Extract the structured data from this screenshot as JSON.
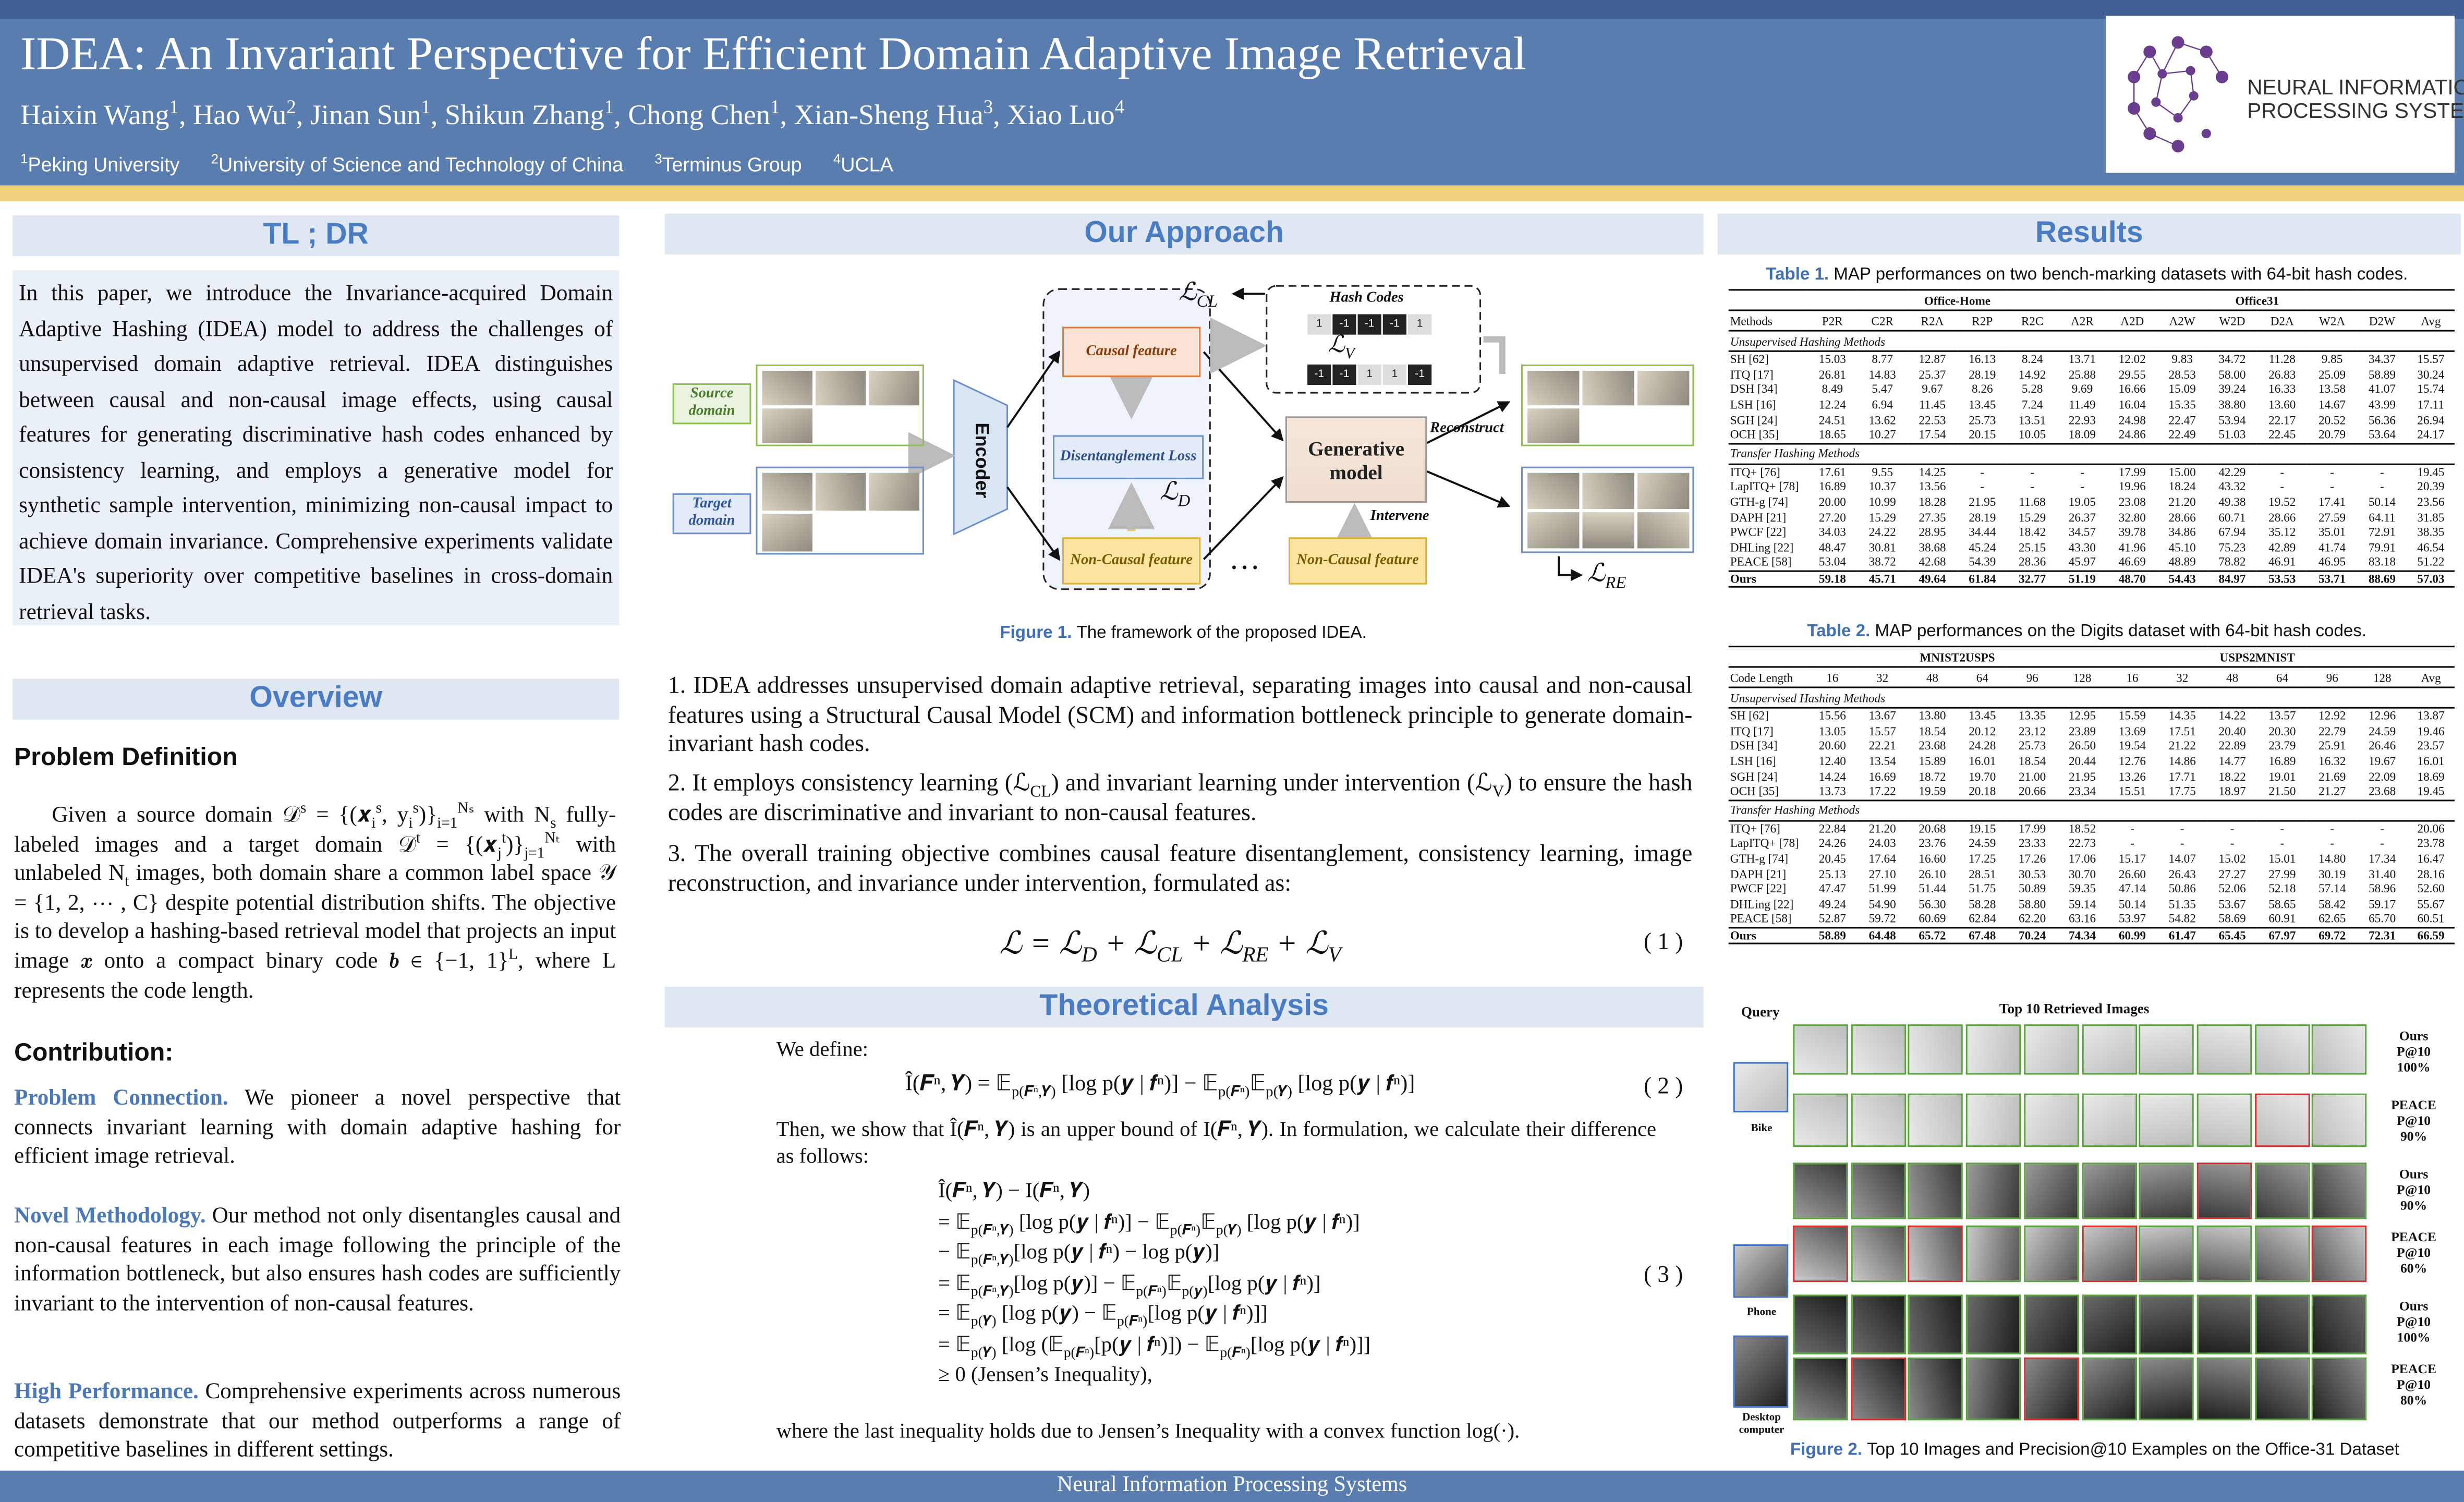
{
  "header": {
    "title": "IDEA: An Invariant Perspective for Efficient Domain Adaptive Image Retrieval",
    "authors": [
      "Haixin Wang",
      {
        "sup": "1"
      },
      ", Hao Wu",
      {
        "sup": "2"
      },
      ", Jinan Sun",
      {
        "sup": "1"
      },
      ", Shikun Zhang",
      {
        "sup": "1"
      },
      ", Chong Chen",
      {
        "sup": "1"
      },
      ", Xian-Sheng Hua",
      {
        "sup": "3"
      },
      ", Xiao Luo",
      {
        "sup": "4"
      }
    ],
    "affiliations": [
      {
        "sup": "1"
      },
      "Peking University",
      {
        "sup": "2"
      },
      "University of Science and Technology of China",
      {
        "sup": "3"
      },
      "Terminus Group",
      {
        "sup": "4"
      },
      "UCLA"
    ],
    "logo": [
      "NEURAL INFORMATION",
      "PROCESSING SYSTEMS"
    ]
  },
  "left": {
    "tldr_title": "TL ; DR",
    "tldr": "In this paper, we introduce the Invariance-acquired Domain Adaptive Hashing (IDEA) model to address the challenges of unsupervised domain adaptive retrieval. IDEA distinguishes between causal and non-causal image effects, using causal features for generating discriminative hash codes enhanced by consistency learning, and employs a generative model for synthetic sample intervention, minimizing non-causal impact to achieve domain invariance. Comprehensive experiments validate IDEA's superiority over competitive baselines in cross-domain retrieval tasks.",
    "overview_title": "Overview",
    "problem_title": "Problem Definition",
    "problem": [
      "Given a source domain 𝒟",
      {
        "sup": "s"
      },
      " = {(𝒙",
      {
        "sub": "i"
      },
      {
        "sup": "s"
      },
      ", y",
      {
        "sub": "i"
      },
      {
        "sup": "s"
      },
      ")}",
      {
        "sub": "i=1"
      },
      {
        "sup": "Nₛ"
      },
      " with N",
      {
        "sub": "s"
      },
      " fully-labeled images and a target domain 𝒟",
      {
        "sup": "t"
      },
      " = {(𝒙",
      {
        "sub": "j"
      },
      {
        "sup": "t"
      },
      ")}",
      {
        "sub": "j=1"
      },
      {
        "sup": "Nₜ"
      },
      " with unlabeled N",
      {
        "sub": "t"
      },
      " images, both domain share a common label space 𝒴 = {1, 2, ⋯ , C} despite potential distribution shifts. The objective is to develop a hashing-based retrieval model that projects an input image 𝒙 onto a compact binary code 𝒃 ∈ {−1, 1}",
      {
        "sup": "L"
      },
      ", where L represents the code length."
    ],
    "contribution_title": "Contribution:",
    "contributions": [
      [
        {
          "lead": "Problem Connection."
        },
        " We pioneer a novel perspective that connects invariant learning with domain adaptive hashing for efficient image retrieval."
      ],
      [
        {
          "lead": "Novel Methodology."
        },
        " Our method not only disentangles causal and non-causal features in each image following the principle of the information bottleneck, but also ensures hash codes are sufficiently invariant to the intervention of non-causal features."
      ],
      [
        {
          "lead": "High Performance."
        },
        " Comprehensive experiments across numerous datasets demonstrate that our method outperforms a range of competitive baselines in different settings."
      ]
    ]
  },
  "approach": {
    "title": "Our Approach",
    "figure1": {
      "loss_cl": [
        "ℒ",
        {
          "sub": "CL"
        }
      ],
      "hash_codes": "Hash Codes",
      "codes": [
        [
          "1",
          "-1",
          "-1",
          "-1",
          "1"
        ],
        [
          "-1",
          "-1",
          "1",
          "1",
          "-1"
        ]
      ],
      "loss_v": [
        "ℒ",
        {
          "sub": "V"
        }
      ],
      "source": "Source domain",
      "target": "Target domain",
      "encoder": "Encoder",
      "causal": "Causal feature",
      "disentangle": "Disentanglement Loss",
      "loss_d": [
        "ℒ",
        {
          "sub": "D"
        }
      ],
      "noncausal": "Non-Causal feature",
      "dots": "…",
      "generative": "Generative model",
      "reconstruct": "Reconstruct",
      "intervene": "Intervene",
      "noncausal2": "Non-Causal feature",
      "loss_re": [
        "ℒ",
        {
          "sub": "RE"
        }
      ],
      "caption_label": "Figure 1.",
      "caption": "The framework of the proposed IDEA."
    },
    "points": [
      [
        "1. IDEA addresses unsupervised domain adaptive retrieval, separating images into causal and non-causal features using a Structural Causal Model (SCM) and information bottleneck principle to generate domain-invariant hash codes."
      ],
      [
        "2. It employs consistency learning (ℒ",
        {
          "sub": "CL"
        },
        ") and invariant learning under intervention (ℒ",
        {
          "sub": "V"
        },
        ") to ensure the hash codes are discriminative and invariant to non-causal features."
      ],
      [
        "3.  The overall training objective combines causal feature disentanglement, consistency learning, image reconstruction, and invariance under intervention, formulated as:"
      ]
    ],
    "eq1": [
      "ℒ = ℒ",
      {
        "sub": "D"
      },
      " + ℒ",
      {
        "sub": "CL"
      },
      " + ℒ",
      {
        "sub": "RE"
      },
      " + ℒ",
      {
        "sub": "V"
      }
    ],
    "eq1_number": "( 1 )"
  },
  "theory": {
    "title": "Theoretical Analysis",
    "define": "We define:",
    "eq2": [
      "Î(𝑭ⁿ, 𝒀) = 𝔼",
      {
        "sub": "p(𝑭ⁿ,𝒀)"
      },
      " [log p(𝒚 | 𝒇ⁿ)] − 𝔼",
      {
        "sub": "p(𝑭ⁿ)"
      },
      "𝔼",
      {
        "sub": "p(𝒀)"
      },
      " [log p(𝒚 | 𝒇ⁿ)]"
    ],
    "eq2_number": "( 2 )",
    "then": "Then, we show that Î(𝑭ⁿ, 𝒀) is an upper bound of I(𝑭ⁿ, 𝒀). In formulation, we calculate their difference as follows:",
    "eq3": [
      [
        "Î(𝑭ⁿ, 𝒀) − I(𝑭ⁿ, 𝒀)"
      ],
      [
        "= 𝔼",
        {
          "sub": "p(𝑭ⁿ,𝒀)"
        },
        " [log p(𝒚 | 𝒇ⁿ)] − 𝔼",
        {
          "sub": "p(𝑭ⁿ)"
        },
        "𝔼",
        {
          "sub": "p(𝒀)"
        },
        " [log p(𝒚 | 𝒇ⁿ)]"
      ],
      [
        "− 𝔼",
        {
          "sub": "p(𝑭ⁿ,𝒀)"
        },
        "[log p(𝒚 | 𝒇ⁿ) − log p(𝒚)]"
      ],
      [
        "= 𝔼",
        {
          "sub": "p(𝑭ⁿ,𝒀)"
        },
        "[log p(𝒚)] − 𝔼",
        {
          "sub": "p(𝑭ⁿ)"
        },
        "𝔼",
        {
          "sub": "p(𝒚)"
        },
        "[log p(𝒚 | 𝒇ⁿ)]"
      ],
      [
        "= 𝔼",
        {
          "sub": "p(𝒀)"
        },
        " [log p(𝒚) − 𝔼",
        {
          "sub": "p(𝑭ⁿ)"
        },
        "[log p(𝒚 | 𝒇ⁿ)]]"
      ],
      [
        "= 𝔼",
        {
          "sub": "p(𝒀)"
        },
        " [log (𝔼",
        {
          "sub": "p(𝑭ⁿ)"
        },
        "[p(𝒚 | 𝒇ⁿ)]) − 𝔼",
        {
          "sub": "p(𝑭ⁿ)"
        },
        "[log p(𝒚 | 𝒇ⁿ)]]"
      ],
      [
        "≥ 0 (Jensen’s Inequality),"
      ]
    ],
    "eq3_number": "( 3 )",
    "conclusion": "where the last inequality holds due to Jensen’s Inequality with a convex function log(·)."
  },
  "results": {
    "title": "Results",
    "table1": {
      "label": "Table 1.",
      "caption": "MAP performances on two bench-marking datasets with 64-bit hash codes.",
      "groups": [
        "Office-Home",
        "Office31"
      ],
      "columns": [
        "Methods",
        "P2R",
        "C2R",
        "R2A",
        "R2P",
        "R2C",
        "A2R",
        "A2D",
        "A2W",
        "W2D",
        "D2A",
        "W2A",
        "D2W",
        "Avg"
      ],
      "sections": [
        {
          "title": "Unsupervised Hashing Methods",
          "rows": [
            [
              "SH [62]",
              "15.03",
              "8.77",
              "12.87",
              "16.13",
              "8.24",
              "13.71",
              "12.02",
              "9.83",
              "34.72",
              "11.28",
              "9.85",
              "34.37",
              "15.57"
            ],
            [
              "ITQ [17]",
              "26.81",
              "14.83",
              "25.37",
              "28.19",
              "14.92",
              "25.88",
              "29.55",
              "28.53",
              "58.00",
              "26.83",
              "25.09",
              "58.89",
              "30.24"
            ],
            [
              "DSH [34]",
              "8.49",
              "5.47",
              "9.67",
              "8.26",
              "5.28",
              "9.69",
              "16.66",
              "15.09",
              "39.24",
              "16.33",
              "13.58",
              "41.07",
              "15.74"
            ],
            [
              "LSH [16]",
              "12.24",
              "6.94",
              "11.45",
              "13.45",
              "7.24",
              "11.49",
              "16.04",
              "15.35",
              "38.80",
              "13.60",
              "14.67",
              "43.99",
              "17.11"
            ],
            [
              "SGH [24]",
              "24.51",
              "13.62",
              "22.53",
              "25.73",
              "13.51",
              "22.93",
              "24.98",
              "22.47",
              "53.94",
              "22.17",
              "20.52",
              "56.36",
              "26.94"
            ],
            [
              "OCH [35]",
              "18.65",
              "10.27",
              "17.54",
              "20.15",
              "10.05",
              "18.09",
              "24.86",
              "22.49",
              "51.03",
              "22.45",
              "20.79",
              "53.64",
              "24.17"
            ]
          ]
        },
        {
          "title": "Transfer Hashing Methods",
          "rows": [
            [
              "ITQ+ [76]",
              "17.61",
              "9.55",
              "14.25",
              "-",
              "-",
              "-",
              "17.99",
              "15.00",
              "42.29",
              "-",
              "-",
              "-",
              "19.45"
            ],
            [
              "LapITQ+ [78]",
              "16.89",
              "10.37",
              "13.56",
              "-",
              "-",
              "-",
              "19.96",
              "18.24",
              "43.32",
              "-",
              "-",
              "-",
              "20.39"
            ],
            [
              "GTH-g [74]",
              "20.00",
              "10.99",
              "18.28",
              "21.95",
              "11.68",
              "19.05",
              "23.08",
              "21.20",
              "49.38",
              "19.52",
              "17.41",
              "50.14",
              "23.56"
            ],
            [
              "DAPH [21]",
              "27.20",
              "15.29",
              "27.35",
              "28.19",
              "15.29",
              "26.37",
              "32.80",
              "28.66",
              "60.71",
              "28.66",
              "27.59",
              "64.11",
              "31.85"
            ],
            [
              "PWCF [22]",
              "34.03",
              "24.22",
              "28.95",
              "34.44",
              "18.42",
              "34.57",
              "39.78",
              "34.86",
              "67.94",
              "35.12",
              "35.01",
              "72.91",
              "38.35"
            ],
            [
              "DHLing [22]",
              "48.47",
              "30.81",
              "38.68",
              "45.24",
              "25.15",
              "43.30",
              "41.96",
              "45.10",
              "75.23",
              "42.89",
              "41.74",
              "79.91",
              "46.54"
            ],
            [
              "PEACE [58]",
              "53.04",
              "38.72",
              "42.68",
              "54.39",
              "28.36",
              "45.97",
              "46.69",
              "48.89",
              "78.82",
              "46.91",
              "46.95",
              "83.18",
              "51.22"
            ],
            [
              "Ours",
              "59.18",
              "45.71",
              "49.64",
              "61.84",
              "32.77",
              "51.19",
              "48.70",
              "54.43",
              "84.97",
              "53.53",
              "53.71",
              "88.69",
              "57.03"
            ]
          ]
        }
      ]
    },
    "table2": {
      "label": "Table 2.",
      "caption": "MAP performances on the Digits dataset with 64-bit hash codes.",
      "groups": [
        "MNIST2USPS",
        "USPS2MNIST"
      ],
      "columns": [
        "Code Length",
        "16",
        "32",
        "48",
        "64",
        "96",
        "128",
        "16",
        "32",
        "48",
        "64",
        "96",
        "128",
        "Avg"
      ],
      "sections": [
        {
          "title": "Unsupervised Hashing Methods",
          "rows": [
            [
              "SH [62]",
              "15.56",
              "13.67",
              "13.80",
              "13.45",
              "13.35",
              "12.95",
              "15.59",
              "14.35",
              "14.22",
              "13.57",
              "12.92",
              "12.96",
              "13.87"
            ],
            [
              "ITQ [17]",
              "13.05",
              "15.57",
              "18.54",
              "20.12",
              "23.12",
              "23.89",
              "13.69",
              "17.51",
              "20.40",
              "20.30",
              "22.79",
              "24.59",
              "19.46"
            ],
            [
              "DSH [34]",
              "20.60",
              "22.21",
              "23.68",
              "24.28",
              "25.73",
              "26.50",
              "19.54",
              "21.22",
              "22.89",
              "23.79",
              "25.91",
              "26.46",
              "23.57"
            ],
            [
              "LSH [16]",
              "12.40",
              "13.54",
              "15.89",
              "16.01",
              "18.54",
              "20.44",
              "12.76",
              "14.86",
              "14.77",
              "16.89",
              "16.32",
              "19.67",
              "16.01"
            ],
            [
              "SGH [24]",
              "14.24",
              "16.69",
              "18.72",
              "19.70",
              "21.00",
              "21.95",
              "13.26",
              "17.71",
              "18.22",
              "19.01",
              "21.69",
              "22.09",
              "18.69"
            ],
            [
              "OCH [35]",
              "13.73",
              "17.22",
              "19.59",
              "20.18",
              "20.66",
              "23.34",
              "15.51",
              "17.75",
              "18.97",
              "21.50",
              "21.27",
              "23.68",
              "19.45"
            ]
          ]
        },
        {
          "title": "Transfer Hashing Methods",
          "rows": [
            [
              "ITQ+ [76]",
              "22.84",
              "21.20",
              "20.68",
              "19.15",
              "17.99",
              "18.52",
              "-",
              "-",
              "-",
              "-",
              "-",
              "-",
              "20.06"
            ],
            [
              "LapITQ+ [78]",
              "24.26",
              "24.03",
              "23.76",
              "24.59",
              "23.33",
              "22.73",
              "-",
              "-",
              "-",
              "-",
              "-",
              "-",
              "23.78"
            ],
            [
              "GTH-g [74]",
              "20.45",
              "17.64",
              "16.60",
              "17.25",
              "17.26",
              "17.06",
              "15.17",
              "14.07",
              "15.02",
              "15.01",
              "14.80",
              "17.34",
              "16.47"
            ],
            [
              "DAPH [21]",
              "25.13",
              "27.10",
              "26.10",
              "28.51",
              "30.53",
              "30.70",
              "26.60",
              "26.43",
              "27.27",
              "27.99",
              "30.19",
              "31.40",
              "28.16"
            ],
            [
              "PWCF [22]",
              "47.47",
              "51.99",
              "51.44",
              "51.75",
              "50.89",
              "59.35",
              "47.14",
              "50.86",
              "52.06",
              "52.18",
              "57.14",
              "58.96",
              "52.60"
            ],
            [
              "DHLing [22]",
              "49.24",
              "54.90",
              "56.30",
              "58.28",
              "58.80",
              "59.14",
              "50.14",
              "51.35",
              "53.67",
              "58.65",
              "58.42",
              "59.17",
              "55.67"
            ],
            [
              "PEACE [58]",
              "52.87",
              "59.72",
              "60.69",
              "62.84",
              "62.20",
              "63.16",
              "53.97",
              "54.82",
              "58.69",
              "60.91",
              "62.65",
              "65.70",
              "60.51"
            ],
            [
              "Ours",
              "58.89",
              "64.48",
              "65.72",
              "67.48",
              "70.24",
              "74.34",
              "60.99",
              "61.47",
              "65.45",
              "67.97",
              "69.72",
              "72.31",
              "66.59"
            ]
          ]
        }
      ]
    },
    "figure2": {
      "query": "Query",
      "title": "Top 10 Retrieved Images",
      "queries": [
        "Bike",
        "Phone",
        "Desktop computer"
      ],
      "rows": [
        [
          "Ours",
          "P@10",
          "100%"
        ],
        [
          "PEACE",
          "P@10",
          "90%"
        ],
        [
          "Ours",
          "P@10",
          "90%"
        ],
        [
          "PEACE",
          "P@10",
          "60%"
        ],
        [
          "Ours",
          "P@10",
          "100%"
        ],
        [
          "PEACE",
          "P@10",
          "80%"
        ]
      ],
      "caption_label": "Figure 2.",
      "caption": "Top 10 Images and Precision@10 Examples on the Office-31 Dataset"
    }
  },
  "footer": "Neural Information Processing Systems"
}
